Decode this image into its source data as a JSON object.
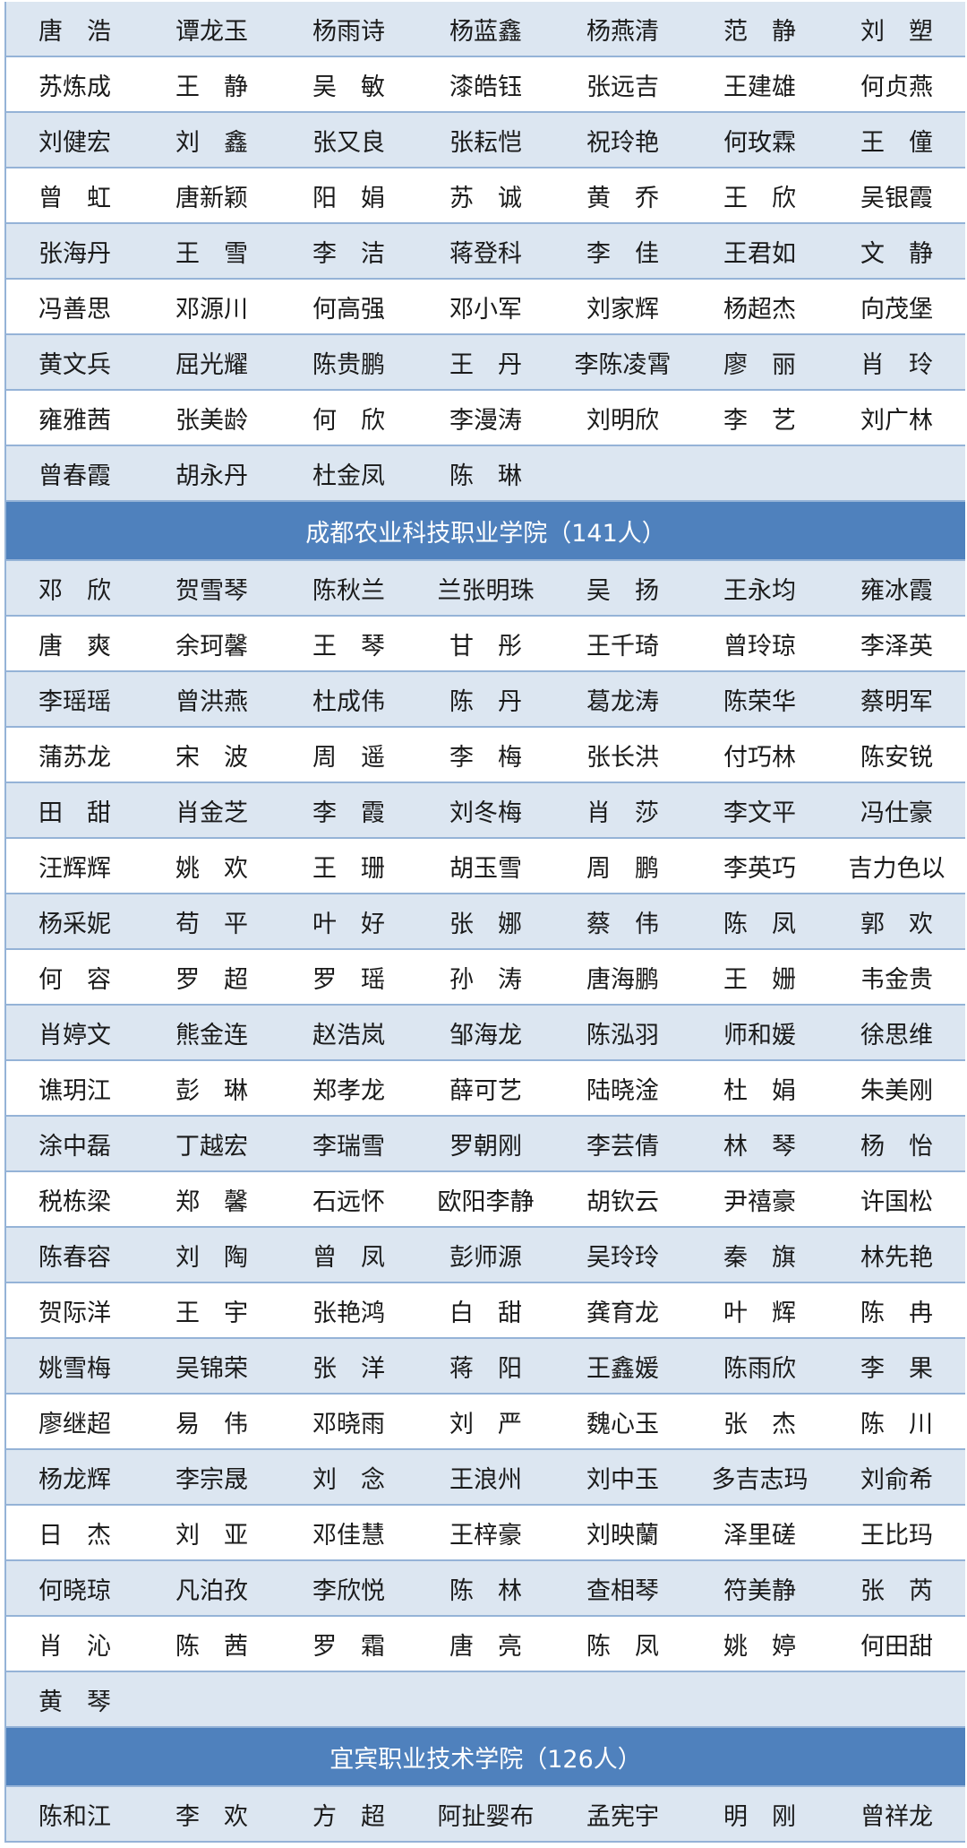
{
  "colors": {
    "header_bg": "#4f81bd",
    "stripe": "#dce6f1",
    "border": "#95b3d7"
  },
  "sections": [
    {
      "title": "",
      "rows": [
        [
          "唐　浩",
          "谭龙玉",
          "杨雨诗",
          "杨蓝鑫",
          "杨燕清",
          "范　静",
          "刘　塑"
        ],
        [
          "苏炼成",
          "王　静",
          "吴　敏",
          "漆皓钰",
          "张远吉",
          "王建雄",
          "何贞燕"
        ],
        [
          "刘健宏",
          "刘　鑫",
          "张又良",
          "张耘恺",
          "祝玲艳",
          "何玫霖",
          "王　僮"
        ],
        [
          "曾　虹",
          "唐新颖",
          "阳　娟",
          "苏　诚",
          "黄　乔",
          "王　欣",
          "吴银霞"
        ],
        [
          "张海丹",
          "王　雪",
          "李　洁",
          "蒋登科",
          "李　佳",
          "王君如",
          "文　静"
        ],
        [
          "冯善思",
          "邓源川",
          "何高强",
          "邓小军",
          "刘家辉",
          "杨超杰",
          "向茂堡"
        ],
        [
          "黄文兵",
          "屈光耀",
          "陈贵鹏",
          "王　丹",
          "李陈凌霄",
          "廖　丽",
          "肖　玲"
        ],
        [
          "雍雅茜",
          "张美龄",
          "何　欣",
          "李漫涛",
          "刘明欣",
          "李　艺",
          "刘广林"
        ],
        [
          "曾春霞",
          "胡永丹",
          "杜金凤",
          "陈　琳",
          "",
          "",
          ""
        ]
      ]
    },
    {
      "title": "成都农业科技职业学院（141人）",
      "rows": [
        [
          "邓　欣",
          "贺雪琴",
          "陈秋兰",
          "兰张明珠",
          "吴　扬",
          "王永均",
          "雍冰霞"
        ],
        [
          "唐　爽",
          "余珂馨",
          "王　琴",
          "甘　彤",
          "王千琦",
          "曾玲琼",
          "李泽英"
        ],
        [
          "李瑶瑶",
          "曾洪燕",
          "杜成伟",
          "陈　丹",
          "葛龙涛",
          "陈荣华",
          "蔡明军"
        ],
        [
          "蒲苏龙",
          "宋　波",
          "周　遥",
          "李　梅",
          "张长洪",
          "付巧林",
          "陈安锐"
        ],
        [
          "田　甜",
          "肖金芝",
          "李　霞",
          "刘冬梅",
          "肖　莎",
          "李文平",
          "冯仕豪"
        ],
        [
          "汪辉辉",
          "姚　欢",
          "王　珊",
          "胡玉雪",
          "周　鹏",
          "李英巧",
          "吉力色以"
        ],
        [
          "杨采妮",
          "苟　平",
          "叶　好",
          "张　娜",
          "蔡　伟",
          "陈　凤",
          "郭　欢"
        ],
        [
          "何　容",
          "罗　超",
          "罗　瑶",
          "孙　涛",
          "唐海鹏",
          "王　姗",
          "韦金贵"
        ],
        [
          "肖婷文",
          "熊金连",
          "赵浩岚",
          "邹海龙",
          "陈泓羽",
          "师和媛",
          "徐思维"
        ],
        [
          "谯玥江",
          "彭　琳",
          "郑孝龙",
          "薛可艺",
          "陆晓淦",
          "杜　娟",
          "朱美刚"
        ],
        [
          "涂中磊",
          "丁越宏",
          "李瑞雪",
          "罗朝刚",
          "李芸倩",
          "林　琴",
          "杨　怡"
        ],
        [
          "税栋梁",
          "郑　馨",
          "石远怀",
          "欧阳李静",
          "胡钦云",
          "尹禧豪",
          "许国松"
        ],
        [
          "陈春容",
          "刘　陶",
          "曾　凤",
          "彭师源",
          "吴玲玲",
          "秦　旗",
          "林先艳"
        ],
        [
          "贺际洋",
          "王　宇",
          "张艳鸿",
          "白　甜",
          "龚育龙",
          "叶　辉",
          "陈　冉"
        ],
        [
          "姚雪梅",
          "吴锦荣",
          "张　洋",
          "蒋　阳",
          "王鑫媛",
          "陈雨欣",
          "李　果"
        ],
        [
          "廖继超",
          "易　伟",
          "邓晓雨",
          "刘　严",
          "魏心玉",
          "张　杰",
          "陈　川"
        ],
        [
          "杨龙辉",
          "李宗晟",
          "刘　念",
          "王浪州",
          "刘中玉",
          "多吉志玛",
          "刘俞希"
        ],
        [
          "日　杰",
          "刘　亚",
          "邓佳慧",
          "王梓豪",
          "刘映蘭",
          "泽里磋",
          "王比玛"
        ],
        [
          "何晓琼",
          "凡泊孜",
          "李欣悦",
          "陈　林",
          "查相琴",
          "符美静",
          "张　芮"
        ],
        [
          "肖　沁",
          "陈　茜",
          "罗　霜",
          "唐　亮",
          "陈　凤",
          "姚　婷",
          "何田甜"
        ],
        [
          "黄　琴",
          "",
          "",
          "",
          "",
          "",
          ""
        ]
      ]
    },
    {
      "title": "宜宾职业技术学院（126人）",
      "rows": [
        [
          "陈和江",
          "李　欢",
          "方　超",
          "阿扯婴布",
          "孟宪宇",
          "明　刚",
          "曾祥龙"
        ]
      ]
    }
  ]
}
